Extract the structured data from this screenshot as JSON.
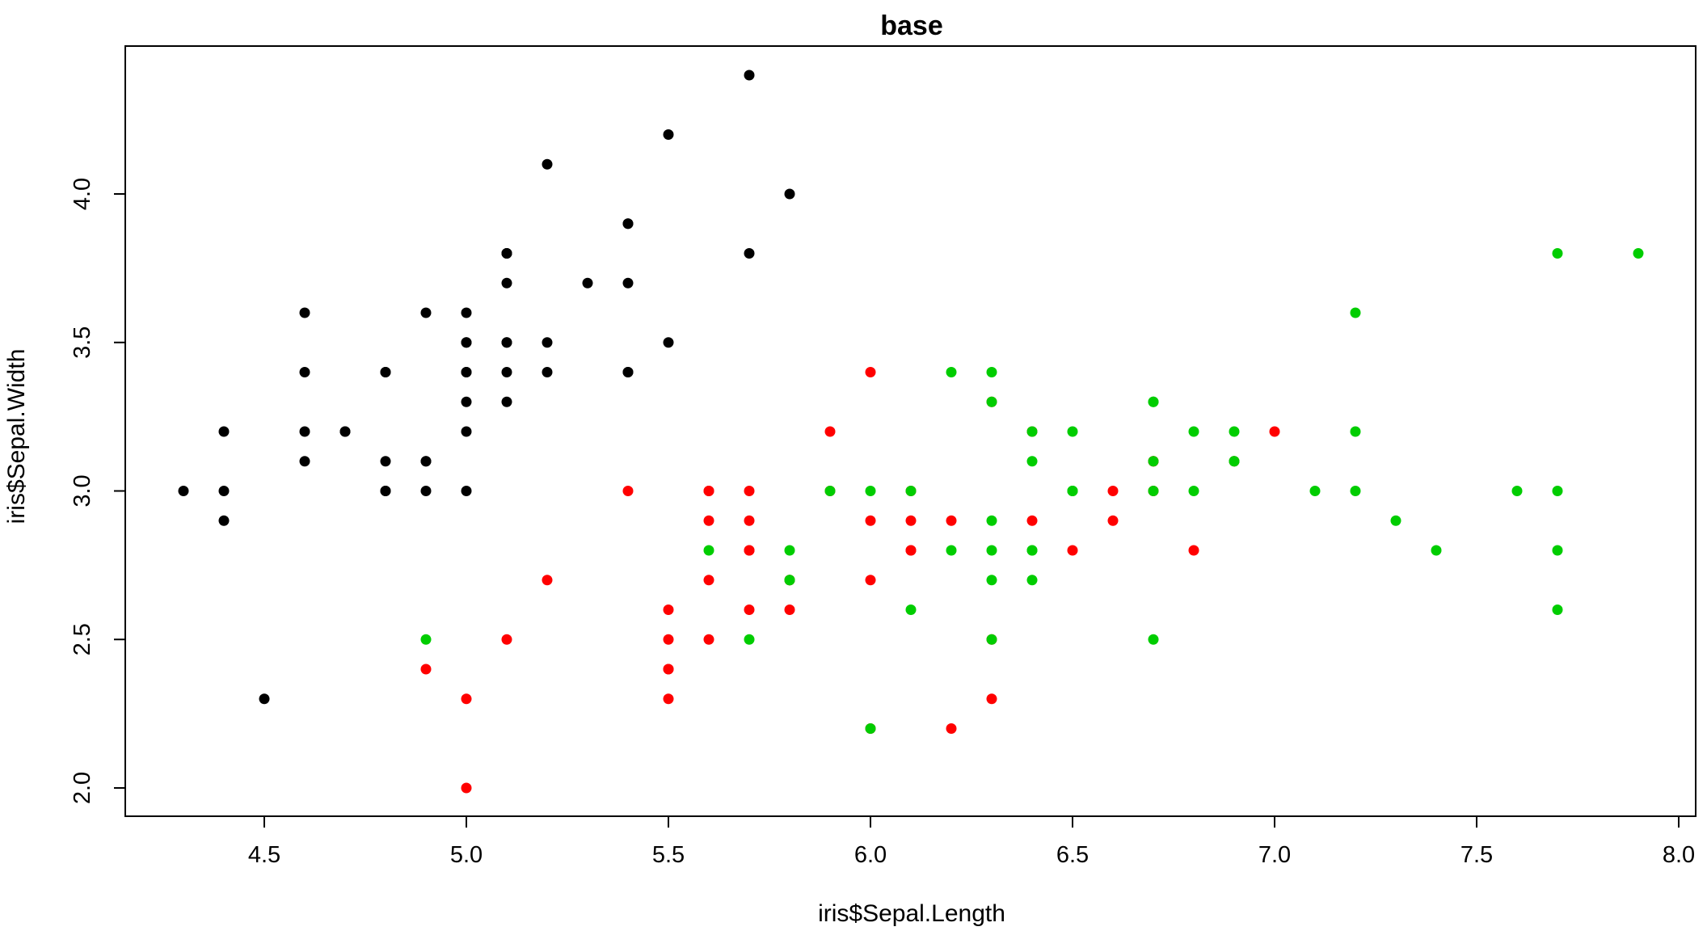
{
  "chart_data": {
    "type": "scatter",
    "title": "base",
    "xlabel": "iris$Sepal.Length",
    "ylabel": "iris$Sepal.Width",
    "xlim": [
      4.3,
      7.9
    ],
    "ylim": [
      2.0,
      4.4
    ],
    "x_ticks": [
      4.5,
      5.0,
      5.5,
      6.0,
      6.5,
      7.0,
      7.5,
      8.0
    ],
    "y_ticks": [
      2.0,
      2.5,
      3.0,
      3.5,
      4.0
    ],
    "x_tick_labels": [
      "4.5",
      "5.0",
      "5.5",
      "6.0",
      "6.5",
      "7.0",
      "7.5",
      "8.0"
    ],
    "y_tick_labels": [
      "2.0",
      "2.5",
      "3.0",
      "3.5",
      "4.0"
    ],
    "grid": false,
    "legend": "none",
    "series": [
      {
        "color": "#000000",
        "points": [
          [
            5.1,
            3.5
          ],
          [
            4.9,
            3.0
          ],
          [
            4.7,
            3.2
          ],
          [
            4.6,
            3.1
          ],
          [
            5.0,
            3.6
          ],
          [
            5.4,
            3.9
          ],
          [
            4.6,
            3.4
          ],
          [
            5.0,
            3.4
          ],
          [
            4.4,
            2.9
          ],
          [
            4.9,
            3.1
          ],
          [
            5.4,
            3.7
          ],
          [
            4.8,
            3.4
          ],
          [
            4.8,
            3.0
          ],
          [
            4.3,
            3.0
          ],
          [
            5.8,
            4.0
          ],
          [
            5.7,
            4.4
          ],
          [
            5.4,
            3.9
          ],
          [
            5.1,
            3.5
          ],
          [
            5.7,
            3.8
          ],
          [
            5.1,
            3.8
          ],
          [
            5.4,
            3.4
          ],
          [
            5.1,
            3.7
          ],
          [
            4.6,
            3.6
          ],
          [
            5.1,
            3.3
          ],
          [
            4.8,
            3.4
          ],
          [
            5.0,
            3.0
          ],
          [
            5.0,
            3.4
          ],
          [
            5.2,
            3.5
          ],
          [
            5.2,
            3.4
          ],
          [
            4.7,
            3.2
          ],
          [
            4.8,
            3.1
          ],
          [
            5.4,
            3.4
          ],
          [
            5.2,
            4.1
          ],
          [
            5.5,
            4.2
          ],
          [
            4.9,
            3.1
          ],
          [
            5.0,
            3.2
          ],
          [
            5.5,
            3.5
          ],
          [
            4.9,
            3.6
          ],
          [
            4.4,
            3.0
          ],
          [
            5.1,
            3.4
          ],
          [
            5.0,
            3.5
          ],
          [
            4.5,
            2.3
          ],
          [
            4.4,
            3.2
          ],
          [
            5.0,
            3.5
          ],
          [
            5.1,
            3.8
          ],
          [
            4.8,
            3.0
          ],
          [
            5.1,
            3.8
          ],
          [
            4.6,
            3.2
          ],
          [
            5.3,
            3.7
          ],
          [
            5.0,
            3.3
          ]
        ]
      },
      {
        "color": "#FF0000",
        "points": [
          [
            7.0,
            3.2
          ],
          [
            6.4,
            3.2
          ],
          [
            6.9,
            3.1
          ],
          [
            5.5,
            2.3
          ],
          [
            6.5,
            2.8
          ],
          [
            5.7,
            2.8
          ],
          [
            6.3,
            3.3
          ],
          [
            4.9,
            2.4
          ],
          [
            6.6,
            2.9
          ],
          [
            5.2,
            2.7
          ],
          [
            5.0,
            2.0
          ],
          [
            5.9,
            3.0
          ],
          [
            6.0,
            2.2
          ],
          [
            6.1,
            2.9
          ],
          [
            5.6,
            2.9
          ],
          [
            6.7,
            3.1
          ],
          [
            5.6,
            3.0
          ],
          [
            5.8,
            2.7
          ],
          [
            6.2,
            2.2
          ],
          [
            5.6,
            2.5
          ],
          [
            5.9,
            3.2
          ],
          [
            6.1,
            2.8
          ],
          [
            6.3,
            2.5
          ],
          [
            6.1,
            2.8
          ],
          [
            6.4,
            2.9
          ],
          [
            6.6,
            3.0
          ],
          [
            6.8,
            2.8
          ],
          [
            6.7,
            3.0
          ],
          [
            6.0,
            2.9
          ],
          [
            5.7,
            2.6
          ],
          [
            5.5,
            2.4
          ],
          [
            5.5,
            2.4
          ],
          [
            5.8,
            2.7
          ],
          [
            6.0,
            2.7
          ],
          [
            5.4,
            3.0
          ],
          [
            6.0,
            3.4
          ],
          [
            6.7,
            3.1
          ],
          [
            6.3,
            2.3
          ],
          [
            5.6,
            3.0
          ],
          [
            5.5,
            2.5
          ],
          [
            5.5,
            2.6
          ],
          [
            6.1,
            3.0
          ],
          [
            5.8,
            2.6
          ],
          [
            5.0,
            2.3
          ],
          [
            5.6,
            2.7
          ],
          [
            5.7,
            3.0
          ],
          [
            5.7,
            2.9
          ],
          [
            6.2,
            2.9
          ],
          [
            5.1,
            2.5
          ],
          [
            5.7,
            2.8
          ]
        ]
      },
      {
        "color": "#00CD00",
        "points": [
          [
            6.3,
            3.3
          ],
          [
            5.8,
            2.7
          ],
          [
            7.1,
            3.0
          ],
          [
            6.3,
            2.9
          ],
          [
            6.5,
            3.0
          ],
          [
            7.6,
            3.0
          ],
          [
            4.9,
            2.5
          ],
          [
            7.3,
            2.9
          ],
          [
            6.7,
            2.5
          ],
          [
            7.2,
            3.6
          ],
          [
            6.5,
            3.2
          ],
          [
            6.4,
            2.7
          ],
          [
            6.8,
            3.0
          ],
          [
            5.7,
            2.5
          ],
          [
            5.8,
            2.8
          ],
          [
            6.4,
            3.2
          ],
          [
            6.5,
            3.0
          ],
          [
            7.7,
            3.8
          ],
          [
            7.7,
            2.6
          ],
          [
            6.0,
            2.2
          ],
          [
            6.9,
            3.2
          ],
          [
            5.6,
            2.8
          ],
          [
            7.7,
            2.8
          ],
          [
            6.3,
            2.7
          ],
          [
            6.7,
            3.3
          ],
          [
            7.2,
            3.2
          ],
          [
            6.2,
            2.8
          ],
          [
            6.1,
            3.0
          ],
          [
            6.4,
            2.8
          ],
          [
            7.2,
            3.0
          ],
          [
            7.4,
            2.8
          ],
          [
            7.9,
            3.8
          ],
          [
            6.4,
            2.8
          ],
          [
            6.3,
            2.8
          ],
          [
            6.1,
            2.6
          ],
          [
            7.7,
            3.0
          ],
          [
            6.3,
            3.4
          ],
          [
            6.4,
            3.1
          ],
          [
            6.0,
            3.0
          ],
          [
            6.9,
            3.1
          ],
          [
            6.7,
            3.1
          ],
          [
            6.9,
            3.1
          ],
          [
            5.8,
            2.7
          ],
          [
            6.8,
            3.2
          ],
          [
            6.7,
            3.3
          ],
          [
            6.7,
            3.0
          ],
          [
            6.3,
            2.5
          ],
          [
            6.5,
            3.0
          ],
          [
            6.2,
            3.4
          ],
          [
            5.9,
            3.0
          ]
        ]
      }
    ]
  }
}
